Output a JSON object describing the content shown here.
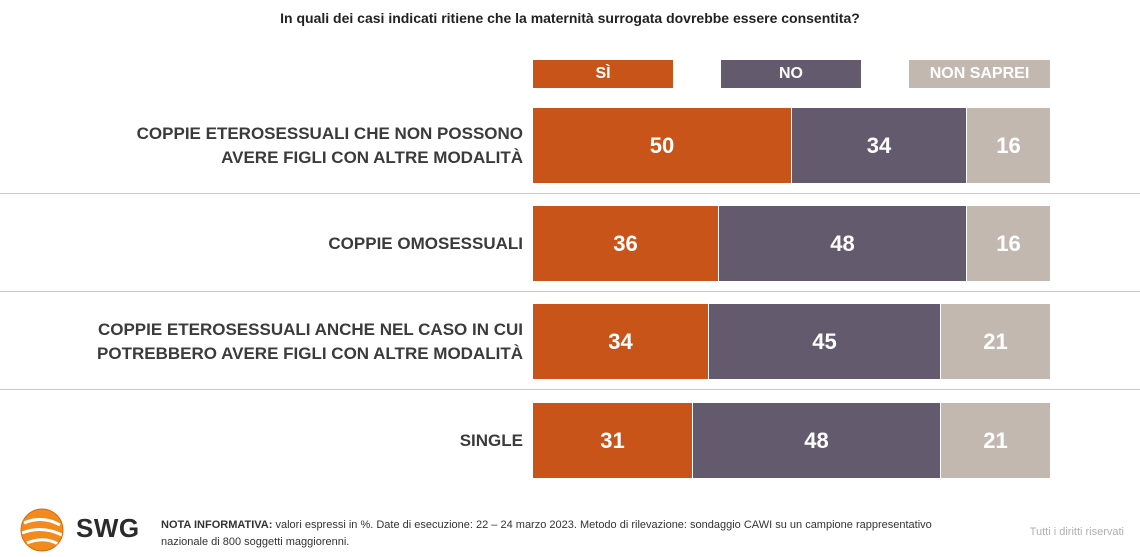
{
  "chart_data": {
    "type": "bar",
    "stacked": true,
    "orientation": "horizontal",
    "title": "In quali dei casi indicati ritiene che la maternità surrogata dovrebbe essere consentita?",
    "categories": [
      [
        "COPPIE ETEROSESSUALI CHE NON POSSONO",
        "AVERE FIGLI CON ALTRE MODALITÀ"
      ],
      [
        "COPPIE OMOSESSUALI"
      ],
      [
        "COPPIE ETEROSESSUALI ANCHE NEL CASO IN CUI",
        "POTREBBERO AVERE FIGLI CON ALTRE MODALITÀ"
      ],
      [
        "SINGLE"
      ]
    ],
    "series": [
      {
        "name": "SÌ",
        "color": "#c9541a",
        "values": [
          50,
          36,
          34,
          31
        ]
      },
      {
        "name": "NO",
        "color": "#645a6d",
        "values": [
          34,
          48,
          45,
          48
        ]
      },
      {
        "name": "NON SAPREI",
        "color": "#c2b8b0",
        "values": [
          16,
          16,
          21,
          21
        ]
      }
    ],
    "xlim": [
      0,
      100
    ],
    "legend_position": "top",
    "grid": false
  },
  "footer": {
    "brand": "SWG",
    "note_label": "NOTA INFORMATIVA:",
    "note_text": " valori espressi in %. Date di esecuzione: 22 – 24 marzo 2023. Metodo di rilevazione: sondaggio CAWI su un campione rappresentativo nazionale di 800 soggetti maggiorenni.",
    "rights": "Tutti i diritti riservati"
  }
}
